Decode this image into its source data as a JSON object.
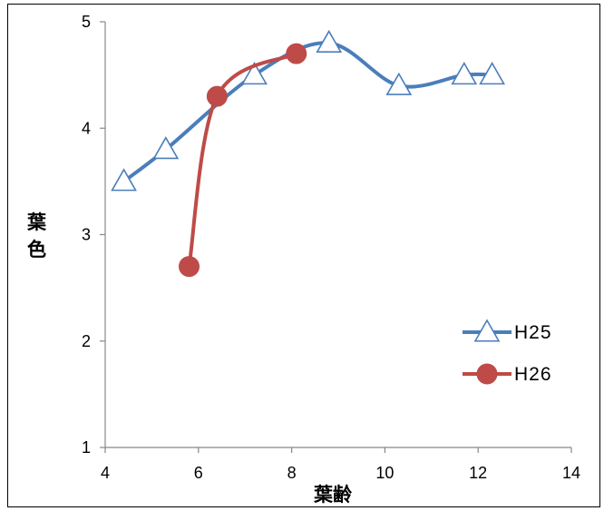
{
  "chart_data": {
    "type": "line",
    "title": "",
    "xlabel": "葉齢",
    "ylabel": "葉色",
    "xlim": [
      4,
      14
    ],
    "ylim": [
      1,
      5
    ],
    "x_ticks": [
      "4",
      "6",
      "8",
      "10",
      "12",
      "14"
    ],
    "y_ticks": [
      "1",
      "2",
      "3",
      "4",
      "5"
    ],
    "grid": false,
    "smooth": true,
    "legend_position": "right",
    "series": [
      {
        "name": "H25",
        "marker": "triangle-open",
        "color": "#4a7ebb",
        "x": [
          4.4,
          5.3,
          7.2,
          8.8,
          10.3,
          11.7,
          12.3
        ],
        "y": [
          3.5,
          3.8,
          4.5,
          4.8,
          4.4,
          4.5,
          4.5
        ]
      },
      {
        "name": "H26",
        "marker": "circle-filled",
        "color": "#be4b48",
        "x": [
          5.8,
          6.4,
          8.1
        ],
        "y": [
          2.7,
          4.3,
          4.7
        ]
      }
    ]
  }
}
